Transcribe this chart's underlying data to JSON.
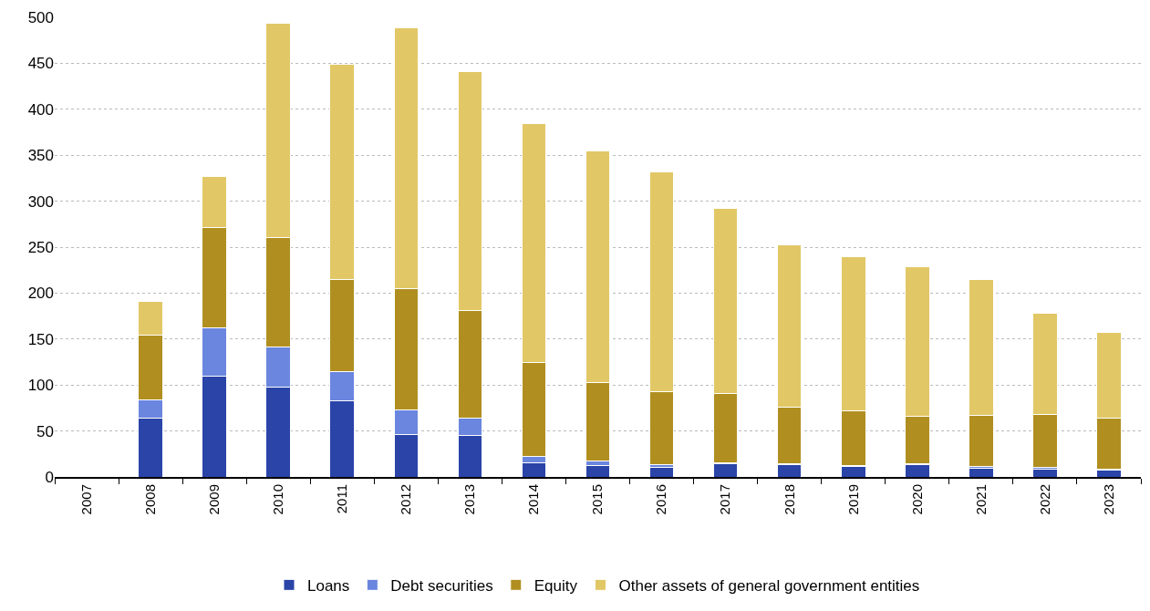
{
  "chart_data": {
    "type": "bar",
    "stacked": true,
    "categories": [
      "2007",
      "2008",
      "2009",
      "2010",
      "2011",
      "2012",
      "2013",
      "2014",
      "2015",
      "2016",
      "2017",
      "2018",
      "2019",
      "2020",
      "2021",
      "2022",
      "2023"
    ],
    "series": [
      {
        "name": "Loans",
        "color": "#2a44a8",
        "values": [
          null,
          64,
          110,
          98,
          83,
          46,
          45,
          15,
          12,
          10,
          14,
          13,
          11,
          13,
          9,
          8,
          7
        ]
      },
      {
        "name": "Debt securities",
        "color": "#6b86de",
        "values": [
          null,
          20,
          52,
          43,
          32,
          27,
          19,
          7,
          5,
          3,
          1,
          1,
          1,
          1,
          2,
          2,
          1
        ]
      },
      {
        "name": "Equity",
        "color": "#b08f20",
        "values": [
          null,
          70,
          109,
          119,
          100,
          132,
          117,
          103,
          86,
          80,
          76,
          62,
          60,
          52,
          56,
          58,
          56
        ]
      },
      {
        "name": "Other assets of general government entities",
        "color": "#e2c766",
        "values": [
          null,
          37,
          56,
          234,
          234,
          284,
          260,
          259,
          252,
          239,
          201,
          176,
          168,
          163,
          148,
          110,
          93
        ]
      }
    ],
    "ylim": [
      0,
      500
    ],
    "yticks": [
      0,
      50,
      100,
      150,
      200,
      250,
      300,
      350,
      400,
      450,
      500
    ],
    "grid": "y",
    "legend": "bottom"
  }
}
